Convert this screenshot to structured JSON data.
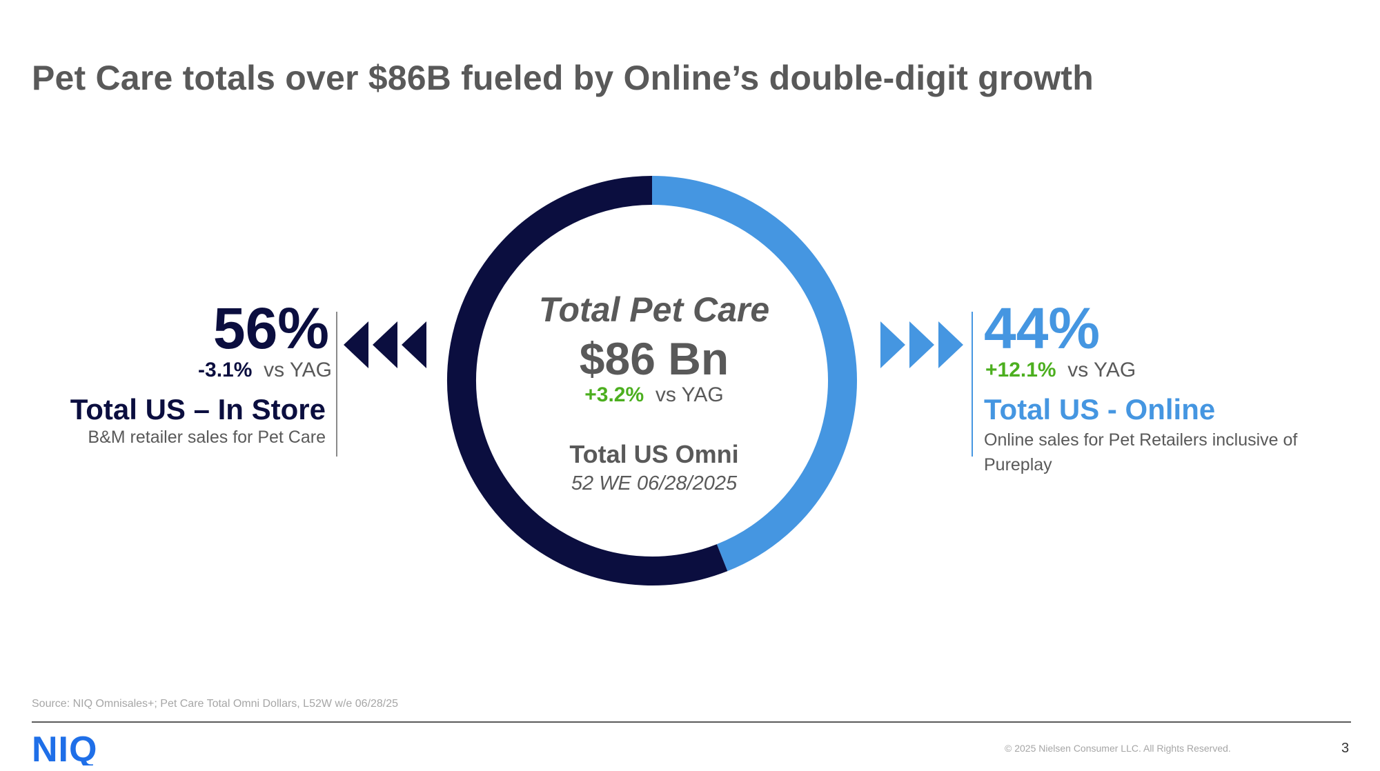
{
  "slide": {
    "title": "Pet Care totals over $86B fueled by Online’s double-digit growth",
    "source": "Source: NIQ Omnisales+; Pet Care Total Omni Dollars, L52W w/e 06/28/25",
    "copyright": "© 2025 Nielsen Consumer LLC. All Rights Reserved.",
    "page_number": "3",
    "logo_text": "NIQ"
  },
  "center": {
    "label": "Total Pet Care",
    "value": "$86 Bn",
    "growth": "+3.2%",
    "growth_suffix": "vs YAG",
    "omni": "Total US Omni",
    "period": "52 WE 06/28/2025"
  },
  "left": {
    "percent": "56%",
    "growth": "-3.1%",
    "growth_suffix": "vs YAG",
    "name": "Total US – In Store",
    "description": "B&M retailer sales for Pet Care"
  },
  "right": {
    "percent": "44%",
    "growth": "+12.1%",
    "growth_suffix": "vs YAG",
    "name": "Total US - Online",
    "description": "Online sales for Pet Retailers inclusive of Pureplay"
  },
  "colors": {
    "in_store": "#0B0E3F",
    "online": "#4596E1",
    "positive": "#4CAF1F",
    "text_gray": "#595959"
  },
  "chart_data": {
    "type": "pie",
    "variant": "donut",
    "title": "Total Pet Care",
    "categories": [
      "Total US – In Store",
      "Total US - Online"
    ],
    "values": [
      56,
      44
    ],
    "unit": "%",
    "start_angle_deg": 0,
    "direction": "clockwise",
    "first_slice": "Total US - Online",
    "colors": [
      "#0B0E3F",
      "#4596E1"
    ]
  }
}
